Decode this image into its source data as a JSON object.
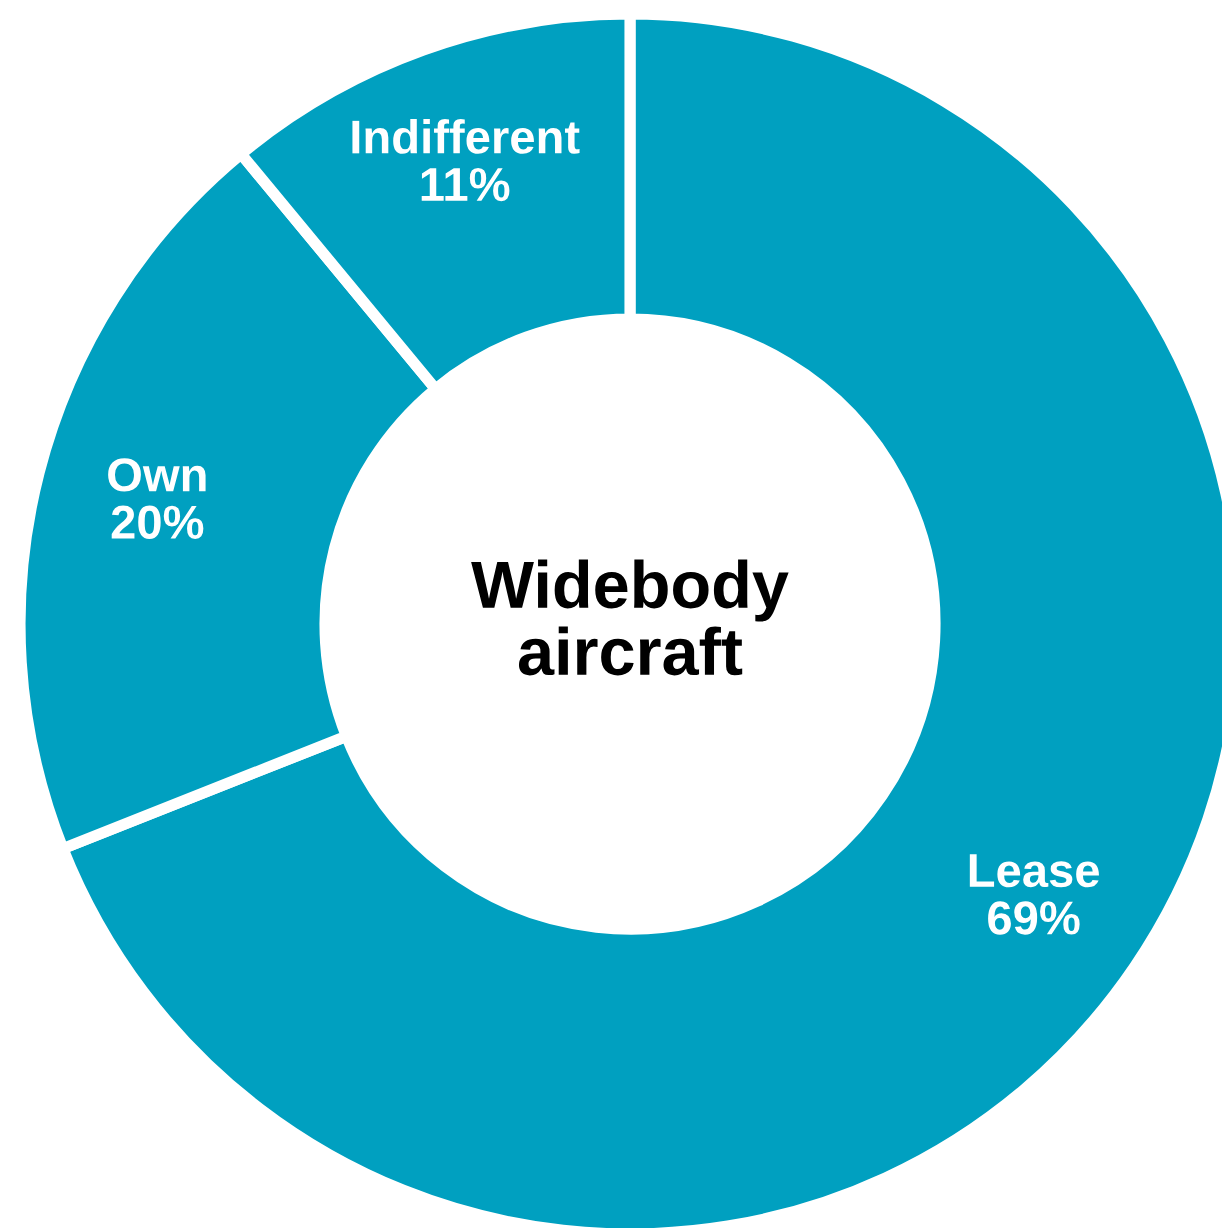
{
  "chart_data": {
    "type": "donut",
    "title": "Widebody\naircraft",
    "categories": [
      "Lease",
      "Own",
      "Indifferent"
    ],
    "values": [
      69,
      20,
      11
    ],
    "value_labels": [
      "69%",
      "20%",
      "11%"
    ],
    "colors": [
      "#00a0c0",
      "#00a0c0",
      "#00a0c0"
    ],
    "legend": false
  }
}
